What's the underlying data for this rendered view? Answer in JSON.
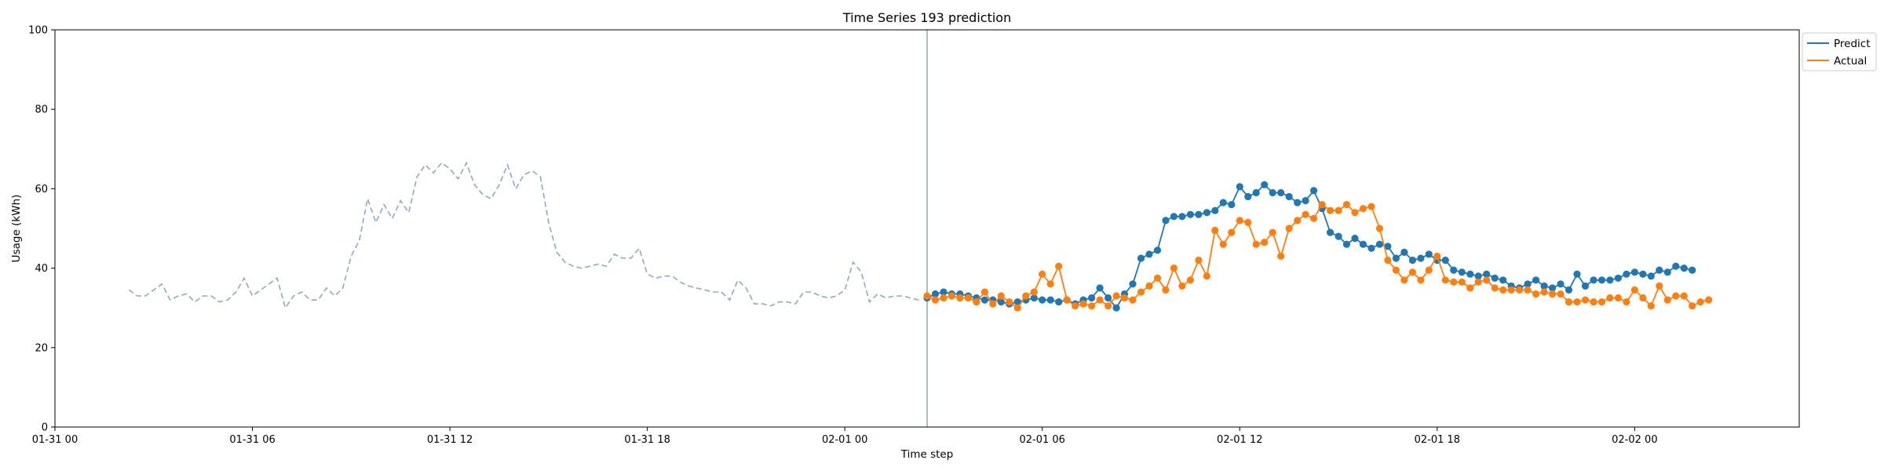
{
  "chart_data": {
    "type": "line",
    "title": "Time Series 193 prediction",
    "xlabel": "Time step",
    "ylabel": "Usage (kWh)",
    "x_unit": "hours",
    "x_range_hours": [
      0,
      53.0
    ],
    "ylim": [
      0,
      100
    ],
    "y_ticks": [
      0,
      20,
      40,
      60,
      80,
      100
    ],
    "x_ticks": [
      {
        "hours": 0,
        "label": "01-31 00"
      },
      {
        "hours": 6,
        "label": "01-31 06"
      },
      {
        "hours": 12,
        "label": "01-31 12"
      },
      {
        "hours": 18,
        "label": "01-31 18"
      },
      {
        "hours": 24,
        "label": "02-01 00"
      },
      {
        "hours": 30,
        "label": "02-01 06"
      },
      {
        "hours": 36,
        "label": "02-01 12"
      },
      {
        "hours": 42,
        "label": "02-01 18"
      },
      {
        "hours": 48,
        "label": "02-02 00"
      }
    ],
    "forecast_start_hours": 26.5,
    "legend": {
      "position": "top-right",
      "entries": [
        "Predict",
        "Actual"
      ]
    },
    "history": {
      "start_hours": 2.25,
      "step_hours": 0.25,
      "color": "#8fa8c8",
      "values": [
        34.5,
        33,
        33,
        34.5,
        36,
        32,
        33,
        33.5,
        31.5,
        33,
        33,
        31.5,
        32,
        34,
        37.5,
        33,
        34.5,
        36,
        37.5,
        30,
        33,
        34,
        32,
        32,
        35,
        33,
        35,
        43,
        47,
        57.5,
        51.5,
        56,
        52.5,
        57,
        54,
        63,
        66,
        64,
        66.5,
        65,
        62.5,
        66.5,
        61,
        58.5,
        57.5,
        61,
        66,
        60,
        63.5,
        64.5,
        63,
        51.5,
        44,
        41.5,
        40.5,
        40,
        40.5,
        41,
        40.5,
        43.5,
        42.5,
        42.5,
        45,
        38.5,
        37.5,
        38,
        38,
        36.5,
        35.5,
        35,
        34.5,
        34,
        34,
        32,
        37,
        35,
        31,
        31,
        30.5,
        31.5,
        31.5,
        31,
        34,
        34,
        33,
        32.5,
        33,
        34.5,
        41.5,
        39,
        31.5,
        33.5,
        32.5,
        33,
        33,
        32.5,
        32
      ]
    },
    "series": [
      {
        "name": "Predict",
        "color": "#1f77b4",
        "start_hours": 26.5,
        "step_hours": 0.25,
        "values": [
          32.5,
          33.5,
          34,
          33.5,
          33.5,
          33,
          32.5,
          32,
          32,
          31.5,
          31,
          31.5,
          32,
          32.5,
          32,
          32,
          31.5,
          32,
          31,
          32,
          32.5,
          35,
          32.5,
          30,
          33.5,
          36,
          42.5,
          43.5,
          44.5,
          52,
          53,
          53,
          53.5,
          53.5,
          54,
          54.5,
          56.5,
          56,
          60.5,
          58,
          59,
          61,
          59,
          59,
          58,
          56.5,
          57,
          59.5,
          55,
          49,
          48,
          46,
          47.5,
          46,
          45,
          46,
          45.5,
          42.5,
          44,
          42,
          42.5,
          43.5,
          42,
          42,
          39.5,
          39,
          38.5,
          38,
          38.5,
          37.5,
          37,
          35.5,
          35,
          36,
          37,
          35.5,
          35,
          36,
          34.5,
          38.5,
          35.5,
          37,
          37,
          37,
          37.5,
          38.5,
          39,
          38.5,
          38,
          39.5,
          39,
          40.5,
          40,
          39.5
        ]
      },
      {
        "name": "Actual",
        "color": "#ff7f0e",
        "start_hours": 26.5,
        "step_hours": 0.25,
        "values": [
          33,
          32,
          32.5,
          33,
          32.5,
          32.5,
          31.5,
          34,
          31,
          33,
          31.5,
          30,
          33,
          34,
          38.5,
          36,
          40.5,
          32,
          30.5,
          31,
          30.5,
          32,
          30.5,
          33,
          32.5,
          32,
          34,
          35.5,
          37.5,
          34.5,
          40,
          35.5,
          37,
          42,
          38,
          49.5,
          46,
          49,
          52,
          51.5,
          46,
          46.5,
          49,
          43,
          50,
          52,
          53.5,
          52.5,
          56,
          54.5,
          54.5,
          56,
          54,
          55,
          55.5,
          50,
          42,
          39.5,
          37,
          39,
          37,
          39.5,
          43,
          37,
          36.5,
          36.5,
          35,
          36.5,
          37,
          35,
          34.5,
          34.5,
          34.5,
          34.5,
          33.5,
          34,
          33.5,
          33.5,
          31.5,
          31.5,
          32,
          31.5,
          31.5,
          32.5,
          32.5,
          31.5,
          34.5,
          32.5,
          30.5,
          35.5,
          32,
          33,
          33,
          30.5,
          31.5,
          32
        ]
      }
    ]
  }
}
